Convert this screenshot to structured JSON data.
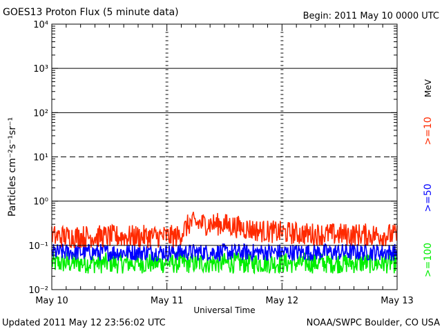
{
  "chart_data": {
    "type": "line",
    "title": "GOES13 Proton Flux (5 minute data)",
    "begin_label": "Begin: 2011 May 10 0000 UTC",
    "xlabel": "Universal Time",
    "ylabel": "Particles cm⁻²s⁻¹sr⁻¹",
    "y_scale": "log",
    "ylim": [
      0.01,
      10000
    ],
    "y_ticks": [
      {
        "value": 0.01,
        "label": "10⁻²"
      },
      {
        "value": 0.1,
        "label": "10⁻¹"
      },
      {
        "value": 1,
        "label": "10⁰"
      },
      {
        "value": 10,
        "label": "10¹"
      },
      {
        "value": 100,
        "label": "10²"
      },
      {
        "value": 1000,
        "label": "10³"
      },
      {
        "value": 10000,
        "label": "10⁴"
      }
    ],
    "x_ticks": [
      "May 10",
      "May 11",
      "May 12",
      "May 13"
    ],
    "xlim_days": [
      0,
      3
    ],
    "thresholds": [
      {
        "value": 0.1,
        "style": "solid"
      },
      {
        "value": 1,
        "style": "solid"
      },
      {
        "value": 10,
        "style": "dashed"
      },
      {
        "value": 100,
        "style": "solid"
      },
      {
        "value": 1000,
        "style": "solid"
      }
    ],
    "energy_unit": "MeV",
    "series": [
      {
        "name": ">=10",
        "color": "#ff2a00",
        "profile": [
          [
            0,
            0.15
          ],
          [
            1.1,
            0.15
          ],
          [
            1.2,
            0.3
          ],
          [
            1.5,
            0.28
          ],
          [
            1.8,
            0.2
          ],
          [
            2.2,
            0.17
          ],
          [
            3,
            0.16
          ]
        ]
      },
      {
        "name": ">=50",
        "color": "#0000ff",
        "profile": [
          [
            0,
            0.07
          ],
          [
            3,
            0.07
          ]
        ]
      },
      {
        "name": ">=100",
        "color": "#00ee00",
        "profile": [
          [
            0,
            0.04
          ],
          [
            3,
            0.04
          ]
        ]
      }
    ],
    "grid": false,
    "legend_position": "right"
  },
  "footer": {
    "updated": "Updated 2011 May 12 23:56:02 UTC",
    "credit": "NOAA/SWPC Boulder, CO USA"
  }
}
